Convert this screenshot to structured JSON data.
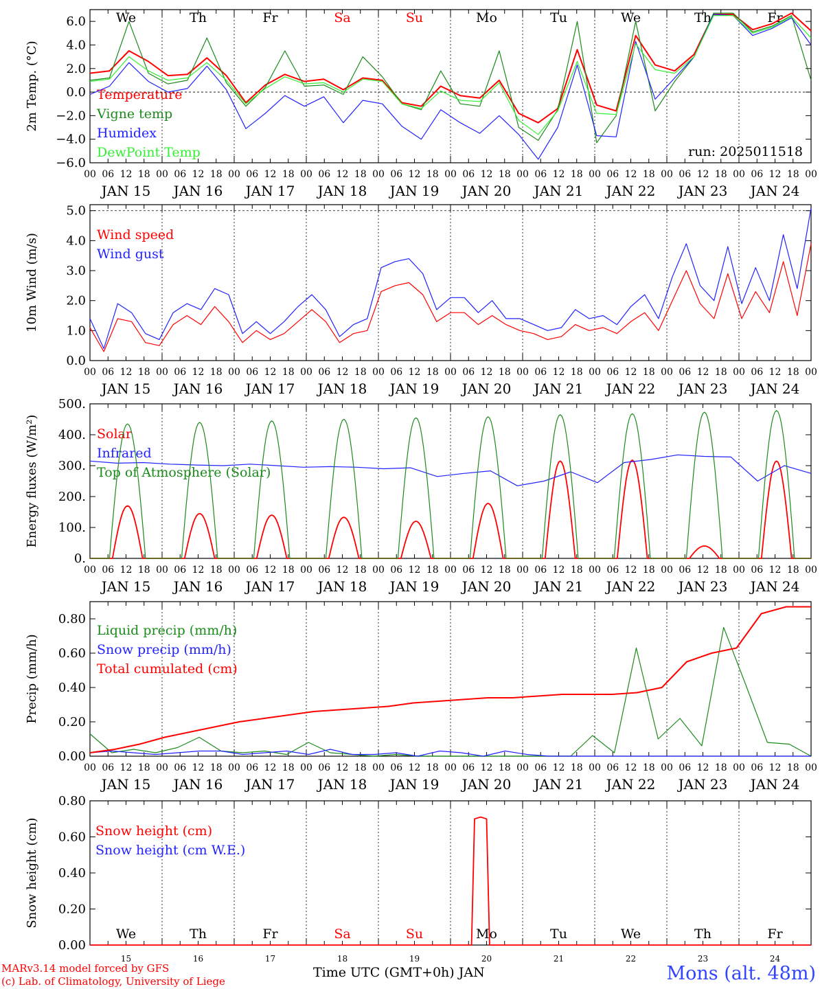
{
  "footer": {
    "model_line": "MARv3.14 model forced by GFS",
    "credit_line": "(c) Lab. of Climatology, University of Liege",
    "station": "Mons (alt. 48m)",
    "x_caption": "Time UTC (GMT+0h) JAN"
  },
  "colors": {
    "red": "#ff0000",
    "green": "#1a8a1a",
    "blue": "#2222ff",
    "lightgreen": "#33ee33"
  },
  "chart_data": [
    {
      "type": "line",
      "ylabel": "2m Temp. (°C)",
      "ylim": [
        -6,
        7
      ],
      "yticks": [
        6.0,
        4.0,
        2.0,
        0.0,
        -2.0,
        -4.0,
        -6.0
      ],
      "ytick_labels": [
        "6.0",
        "4.0",
        "2.0",
        "0.0",
        "−2.0",
        "−4.0",
        "−6.0"
      ],
      "ref_line": 0,
      "annotation": "run: 2025011518",
      "day_labels": [
        {
          "text": "We",
          "color": "black"
        },
        {
          "text": "Th",
          "color": "black"
        },
        {
          "text": "Fr",
          "color": "black"
        },
        {
          "text": "Sa",
          "color": "red"
        },
        {
          "text": "Su",
          "color": "red"
        },
        {
          "text": "Mo",
          "color": "black"
        },
        {
          "text": "Tu",
          "color": "black"
        },
        {
          "text": "We",
          "color": "black"
        },
        {
          "text": "Th",
          "color": "black"
        },
        {
          "text": "Fr",
          "color": "black"
        }
      ],
      "x_hours": [
        0,
        6,
        12,
        18,
        24,
        30,
        36,
        42,
        48,
        54,
        60,
        66,
        72,
        78,
        84,
        90,
        96,
        102,
        108,
        114,
        120,
        126,
        132,
        138,
        144,
        150,
        156,
        162,
        168,
        174,
        180,
        186,
        192,
        198,
        204,
        210,
        216,
        222,
        228,
        234,
        240
      ],
      "series": [
        {
          "name": "Temperature",
          "color": "red",
          "values": [
            1.6,
            1.8,
            3.5,
            2.6,
            1.4,
            1.5,
            2.9,
            1.4,
            -0.9,
            0.6,
            1.5,
            0.9,
            1.1,
            0.2,
            1.2,
            1.0,
            -0.9,
            -1.2,
            0.5,
            -0.3,
            -0.5,
            1.0,
            -1.8,
            -2.6,
            -1.4,
            3.6,
            -1.1,
            -1.6,
            4.8,
            2.3,
            1.8,
            3.2,
            6.6,
            6.6,
            5.3,
            5.8,
            6.7,
            5.2
          ]
        },
        {
          "name": "Vigne temp",
          "color": "green",
          "values": [
            1.0,
            1.2,
            6.0,
            1.6,
            0.7,
            1.0,
            4.6,
            0.8,
            -1.2,
            0.4,
            3.5,
            0.5,
            0.6,
            -0.2,
            3.0,
            1.3,
            -1.0,
            -1.5,
            1.8,
            -1.0,
            -1.2,
            3.5,
            -3.0,
            -4.1,
            -1.5,
            6.0,
            -4.3,
            -2.0,
            6.0,
            -1.6,
            0.9,
            3.0,
            6.7,
            6.7,
            5.1,
            5.6,
            6.5,
            1.0
          ]
        },
        {
          "name": "Humidex",
          "color": "blue",
          "values": [
            -0.2,
            0.5,
            2.5,
            0.9,
            0.0,
            0.3,
            2.2,
            0.2,
            -3.1,
            -1.8,
            -0.3,
            -1.2,
            -0.4,
            -2.6,
            -0.7,
            -1.0,
            -2.9,
            -4.0,
            -1.5,
            -2.6,
            -3.5,
            -2.0,
            -3.6,
            -5.7,
            -3.0,
            2.3,
            -3.7,
            -3.8,
            4.3,
            -0.6,
            1.2,
            3.0,
            6.6,
            6.5,
            4.8,
            5.4,
            6.3,
            4.0
          ]
        },
        {
          "name": "DewPoint Temp",
          "color": "lightgreen",
          "values": [
            0.9,
            1.1,
            3.0,
            1.8,
            1.0,
            1.2,
            2.5,
            1.0,
            -1.0,
            0.3,
            1.3,
            0.7,
            0.8,
            0.0,
            1.1,
            0.9,
            -1.0,
            -1.4,
            0.1,
            -0.7,
            -0.8,
            0.8,
            -2.4,
            -3.6,
            -1.6,
            2.6,
            -1.8,
            -1.9,
            4.1,
            1.9,
            1.6,
            3.0,
            6.5,
            6.5,
            5.0,
            5.5,
            6.4,
            4.6
          ]
        }
      ]
    },
    {
      "type": "line",
      "ylabel": "10m Wind (m/s)",
      "ylim": [
        0,
        5.2
      ],
      "yticks": [
        0,
        1,
        2,
        3,
        4,
        5
      ],
      "ytick_labels": [
        "0.0",
        "1.0",
        "2.0",
        "3.0",
        "4.0",
        "5.0"
      ],
      "ref_line": 5,
      "series": [
        {
          "name": "Wind speed",
          "color": "red",
          "values": [
            1.1,
            0.3,
            1.4,
            1.3,
            0.6,
            0.5,
            1.2,
            1.5,
            1.2,
            1.8,
            1.3,
            0.6,
            1.0,
            0.7,
            0.9,
            1.3,
            1.7,
            1.3,
            0.6,
            0.9,
            1.0,
            2.3,
            2.5,
            2.6,
            2.2,
            1.3,
            1.6,
            1.6,
            1.2,
            1.5,
            1.2,
            1.0,
            0.9,
            0.7,
            0.8,
            1.2,
            1.0,
            1.1,
            0.9,
            1.3,
            1.6,
            1.0,
            2.0,
            3.0,
            1.9,
            1.4,
            2.9,
            1.4,
            2.3,
            1.6,
            3.3,
            1.5,
            3.9
          ]
        },
        {
          "name": "Wind gust",
          "color": "blue",
          "values": [
            1.4,
            0.4,
            1.9,
            1.6,
            0.9,
            0.7,
            1.6,
            1.9,
            1.7,
            2.4,
            2.2,
            0.9,
            1.3,
            0.9,
            1.3,
            1.8,
            2.2,
            1.7,
            0.8,
            1.2,
            1.4,
            3.1,
            3.3,
            3.4,
            2.9,
            1.7,
            2.1,
            2.1,
            1.6,
            2.0,
            1.4,
            1.4,
            1.2,
            1.0,
            1.1,
            1.7,
            1.4,
            1.5,
            1.2,
            1.8,
            2.2,
            1.4,
            2.8,
            3.9,
            2.5,
            2.0,
            3.8,
            1.9,
            3.1,
            2.0,
            4.2,
            2.4,
            5.1
          ]
        }
      ]
    },
    {
      "type": "line",
      "ylabel": "Energy fluxes (W/m²)",
      "ylim": [
        0,
        500
      ],
      "yticks": [
        0,
        100,
        200,
        300,
        400,
        500
      ],
      "ytick_labels": [
        "0.",
        "100.",
        "200.",
        "300.",
        "400.",
        "500."
      ],
      "series": [
        {
          "name": "Solar",
          "color": "red",
          "peaks": [
            170,
            145,
            140,
            133,
            120,
            178,
            315,
            318,
            40,
            315
          ]
        },
        {
          "name": "Infrared",
          "color": "blue",
          "values": [
            315,
            308,
            310,
            305,
            302,
            300,
            305,
            300,
            295,
            297,
            295,
            290,
            293,
            265,
            275,
            283,
            235,
            250,
            280,
            245,
            310,
            320,
            335,
            330,
            328,
            250,
            300,
            275
          ]
        },
        {
          "name": "Top of Atmosphere (Solar)",
          "color": "green",
          "peaks": [
            435,
            440,
            445,
            450,
            455,
            458,
            465,
            468,
            473,
            478
          ]
        }
      ]
    },
    {
      "type": "line",
      "ylabel": "Precip (mm/h)",
      "ylim": [
        0,
        0.9
      ],
      "yticks": [
        0,
        0.2,
        0.4,
        0.6,
        0.8
      ],
      "ytick_labels": [
        "0.00",
        "0.20",
        "0.40",
        "0.60",
        "0.80"
      ],
      "series": [
        {
          "name": "Liquid precip (mm/h)",
          "color": "green",
          "values": [
            0.13,
            0.02,
            0.04,
            0.02,
            0.05,
            0.11,
            0.03,
            0.02,
            0.03,
            0.01,
            0.08,
            0.02,
            0.01,
            0.0,
            0.01,
            0.0,
            0.0,
            0.0,
            0.0,
            0.0,
            0.0,
            0.0,
            0.0,
            0.12,
            0.02,
            0.63,
            0.1,
            0.22,
            0.06,
            0.75,
            0.42,
            0.08,
            0.07,
            0.0
          ]
        },
        {
          "name": "Snow precip (mm/h)",
          "color": "blue",
          "values": [
            0.02,
            0.03,
            0.02,
            0.01,
            0.02,
            0.03,
            0.03,
            0.01,
            0.02,
            0.03,
            0.01,
            0.04,
            0.01,
            0.01,
            0.02,
            0.0,
            0.03,
            0.02,
            0.0,
            0.03,
            0.01,
            0.0,
            0.0,
            0.0,
            0.0,
            0.0,
            0.0,
            0.0,
            0.0,
            0.0,
            0.0,
            0.0,
            0.0,
            0.0
          ]
        },
        {
          "name": "Total cumulated (cm)",
          "color": "red",
          "values": [
            0.02,
            0.04,
            0.07,
            0.11,
            0.14,
            0.17,
            0.2,
            0.22,
            0.24,
            0.26,
            0.27,
            0.28,
            0.29,
            0.31,
            0.32,
            0.33,
            0.34,
            0.34,
            0.35,
            0.36,
            0.36,
            0.36,
            0.37,
            0.4,
            0.55,
            0.6,
            0.63,
            0.83,
            0.87,
            0.87
          ]
        }
      ]
    },
    {
      "type": "line",
      "ylabel": "Snow height (cm)",
      "ylim": [
        0,
        0.8
      ],
      "yticks": [
        0,
        0.2,
        0.4,
        0.6,
        0.8
      ],
      "ytick_labels": [
        "0.00",
        "0.20",
        "0.40",
        "0.60",
        "0.80"
      ],
      "day_labels": [
        {
          "text": "We",
          "color": "black"
        },
        {
          "text": "Th",
          "color": "black"
        },
        {
          "text": "Fr",
          "color": "black"
        },
        {
          "text": "Sa",
          "color": "red"
        },
        {
          "text": "Su",
          "color": "red"
        },
        {
          "text": "Mo",
          "color": "black"
        },
        {
          "text": "Tu",
          "color": "black"
        },
        {
          "text": "We",
          "color": "black"
        },
        {
          "text": "Th",
          "color": "black"
        },
        {
          "text": "Fr",
          "color": "black"
        }
      ],
      "day_numbers": [
        "15",
        "16",
        "17",
        "18",
        "19",
        "20",
        "21",
        "22",
        "23",
        "24"
      ],
      "series": [
        {
          "name": "Snow height (cm)",
          "color": "red",
          "segments": [
            [
              0,
              0
            ],
            [
              127,
              0
            ],
            [
              128,
              0.7
            ],
            [
              130,
              0.71
            ],
            [
              132,
              0.7
            ],
            [
              133,
              0
            ],
            [
              240,
              0
            ]
          ]
        },
        {
          "name": "Snow height (cm W.E.)",
          "color": "blue",
          "values": []
        }
      ]
    }
  ],
  "x_axis": {
    "hour_labels": [
      "00",
      "06",
      "12",
      "18"
    ],
    "end_label": "00",
    "date_labels": [
      "JAN 15",
      "JAN 16",
      "JAN 17",
      "JAN 18",
      "JAN 19",
      "JAN 20",
      "JAN 21",
      "JAN 22",
      "JAN 23",
      "JAN 24"
    ]
  }
}
